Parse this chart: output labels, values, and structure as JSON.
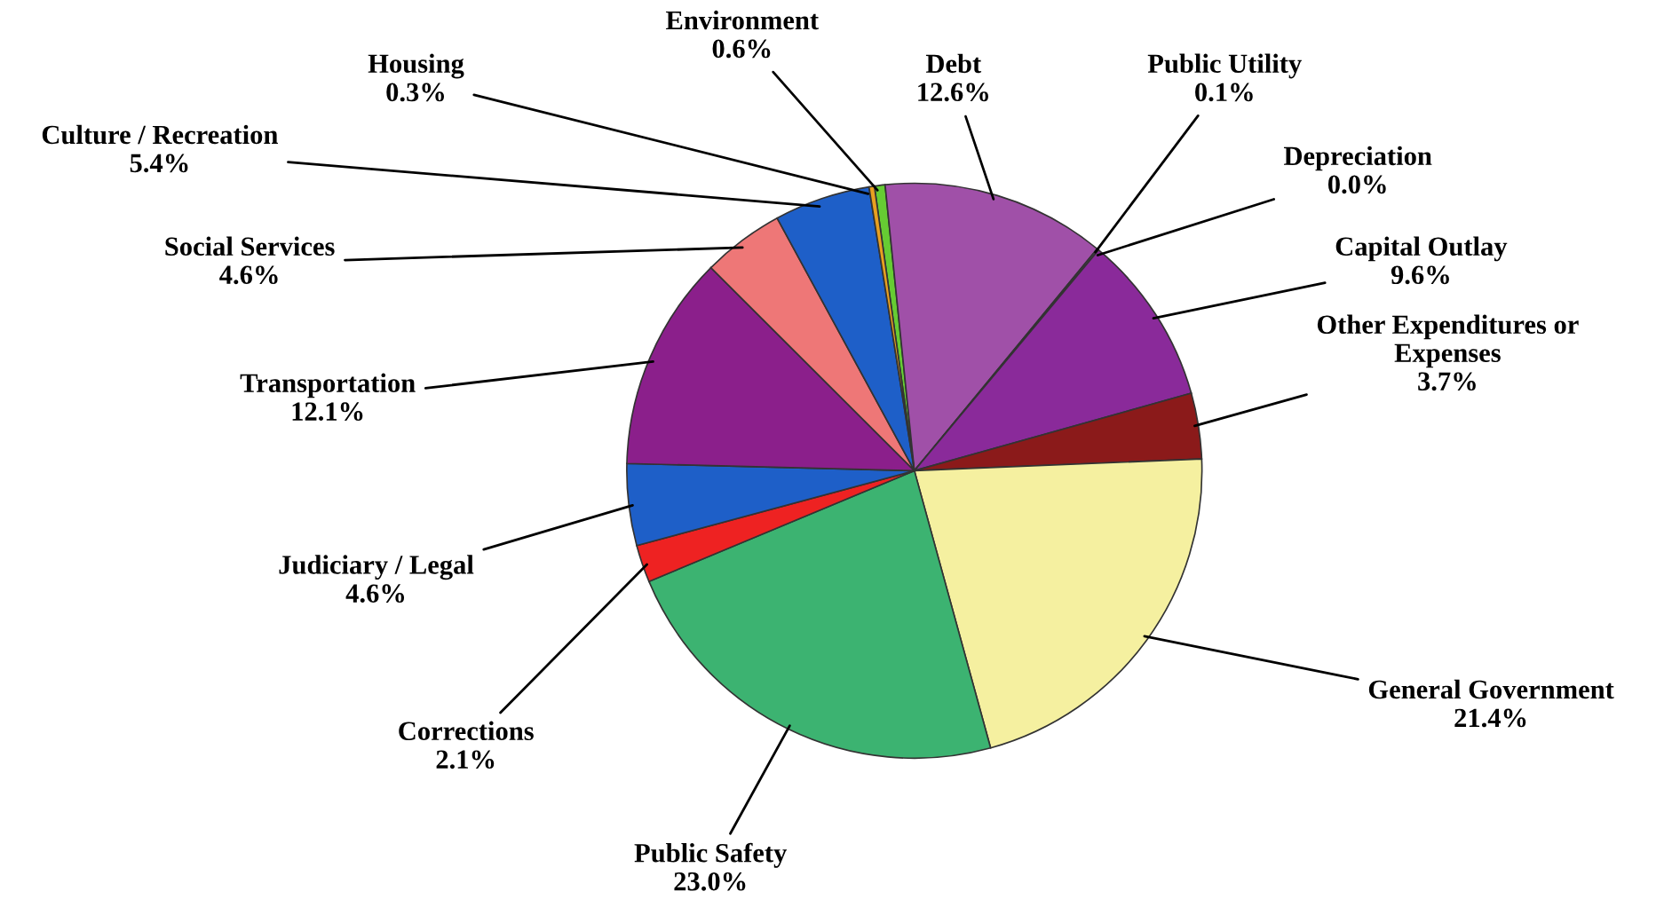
{
  "chart_data": {
    "type": "pie",
    "categories": [
      "Environment",
      "Debt",
      "Public Utility",
      "Depreciation",
      "Capital Outlay",
      "Other Expenditures or\nExpenses",
      "General Government",
      "Public Safety",
      "Corrections",
      "Judiciary / Legal",
      "Transportation",
      "Social Services",
      "Culture / Recreation",
      "Housing"
    ],
    "values": [
      0.6,
      12.6,
      0.1,
      0.0,
      9.6,
      3.7,
      21.4,
      23.0,
      2.1,
      4.6,
      12.1,
      4.6,
      5.4,
      0.3
    ],
    "value_labels": [
      "0.6%",
      "12.6%",
      "0.1%",
      "0.0%",
      "9.6%",
      "3.7%",
      "21.4%",
      "23.0%",
      "2.1%",
      "4.6%",
      "12.1%",
      "4.6%",
      "5.4%",
      "0.3%"
    ],
    "colors": [
      "#66cc33",
      "#a050a8",
      "#7a3a9a",
      "#6a2a8a",
      "#8a2a9a",
      "#8b1a1a",
      "#f5f0a0",
      "#3cb371",
      "#ee2222",
      "#1e5fc8",
      "#8b1f8b",
      "#ee7777",
      "#1e5fc8",
      "#e8a020"
    ],
    "legend": false
  }
}
